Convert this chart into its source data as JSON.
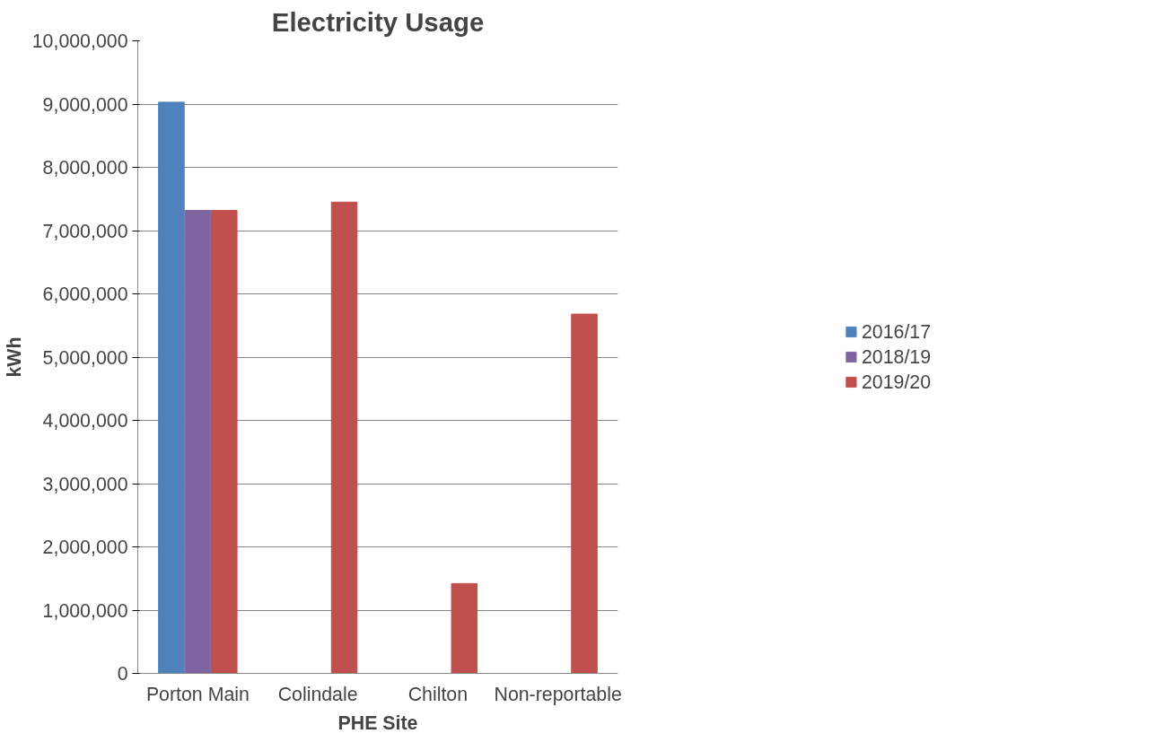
{
  "chart_data": {
    "type": "bar",
    "title": "Electricity Usage",
    "xlabel": "PHE Site",
    "ylabel": "kWh",
    "categories": [
      "Porton Main",
      "Colindale",
      "Chilton",
      "Non-reportable"
    ],
    "series": [
      {
        "name": "2016/17",
        "color": "#4f81bd",
        "values": [
          9030000,
          null,
          null,
          null
        ]
      },
      {
        "name": "2018/19",
        "color": "#8064a2",
        "values": [
          7320000,
          null,
          null,
          null
        ]
      },
      {
        "name": "2019/20",
        "color": "#c0504d",
        "values": [
          7320000,
          7450000,
          1420000,
          5680000
        ]
      }
    ],
    "ylim": [
      0,
      10000000
    ],
    "yticks": [
      {
        "value": 0,
        "label": "0"
      },
      {
        "value": 1000000,
        "label": "1,000,000"
      },
      {
        "value": 2000000,
        "label": "2,000,000"
      },
      {
        "value": 3000000,
        "label": "3,000,000"
      },
      {
        "value": 4000000,
        "label": "4,000,000"
      },
      {
        "value": 5000000,
        "label": "5,000,000"
      },
      {
        "value": 6000000,
        "label": "6,000,000"
      },
      {
        "value": 7000000,
        "label": "7,000,000"
      },
      {
        "value": 8000000,
        "label": "8,000,000"
      },
      {
        "value": 9000000,
        "label": "9,000,000"
      },
      {
        "value": 10000000,
        "label": "10,000,000"
      }
    ],
    "grid": "y",
    "legend": "right"
  }
}
